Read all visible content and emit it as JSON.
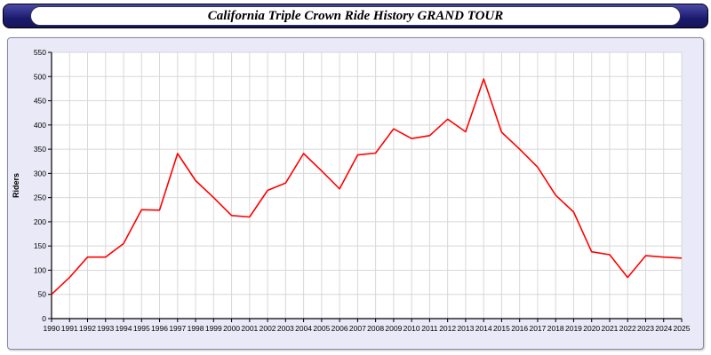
{
  "title": "California Triple Crown Ride History GRAND TOUR",
  "colors": {
    "line": "#ff0000",
    "title_bar": "#1b1b6e",
    "panel_bg": "#e9e9f7",
    "plot_bg": "#ffffff",
    "grid": "#d8d8d8",
    "axis": "#000000"
  },
  "chart_data": {
    "type": "line",
    "title": "California Triple Crown Ride History GRAND TOUR",
    "xlabel": "",
    "ylabel": "Riders",
    "ylim": [
      0,
      550
    ],
    "ytick_step": 50,
    "grid": true,
    "legend": "none",
    "line_color": "#ff0000",
    "categories": [
      1990,
      1991,
      1992,
      1993,
      1994,
      1995,
      1996,
      1997,
      1998,
      1999,
      2000,
      2001,
      2002,
      2003,
      2004,
      2005,
      2006,
      2007,
      2008,
      2009,
      2010,
      2011,
      2012,
      2013,
      2014,
      2015,
      2016,
      2017,
      2018,
      2019,
      2020,
      2021,
      2022,
      2023,
      2024,
      2025
    ],
    "values": [
      50,
      85,
      127,
      127,
      155,
      225,
      224,
      341,
      285,
      250,
      213,
      210,
      265,
      280,
      341,
      305,
      268,
      338,
      342,
      392,
      372,
      378,
      412,
      386,
      495,
      385,
      350,
      313,
      255,
      220,
      138,
      132,
      85,
      130,
      127,
      125
    ]
  }
}
